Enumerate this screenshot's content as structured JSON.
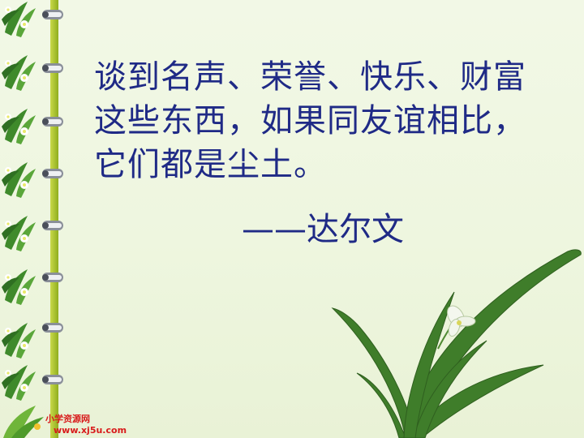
{
  "slide": {
    "quote_lines": [
      "谈到名声、荣誉、快乐、财富",
      "这些东西，如果同友谊相比，",
      "它们都是尘土。"
    ],
    "attribution": "——达尔文"
  },
  "watermark": {
    "site_name": "小学资源网",
    "url": "www.xj5u.com"
  },
  "colors": {
    "text": "#1f2a86",
    "background": "#eef6df",
    "leaf_green": "#3f7d2a",
    "watermark_red": "#d81b1b"
  }
}
